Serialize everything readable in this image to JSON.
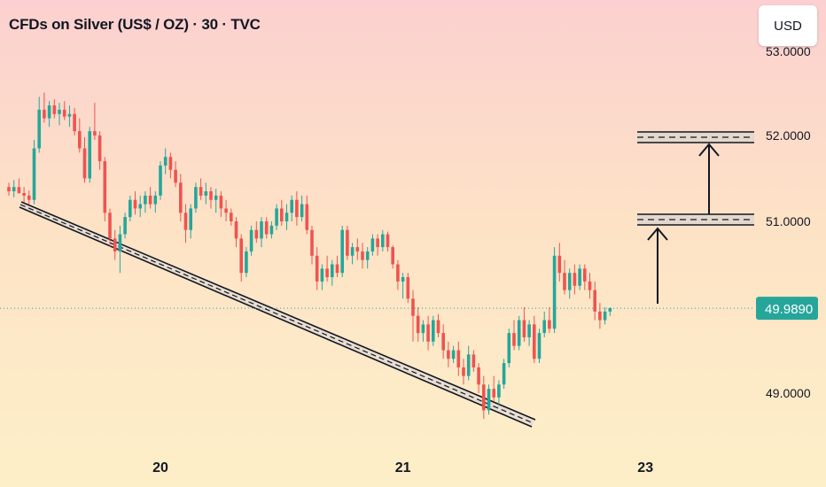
{
  "header": {
    "title": "CFDs on Silver (US$ / OZ) · 30 · TVC",
    "currency_label": "USD"
  },
  "colors": {
    "up": "#26a69a",
    "down": "#ef5350",
    "current_price": "#26a69a",
    "drawing": "#131722"
  },
  "chart_data": {
    "type": "candlestick",
    "y_axis": {
      "ticks": [
        {
          "value": 52.0,
          "label": "52.0000"
        },
        {
          "value": 51.0,
          "label": "51.0000"
        },
        {
          "value": 49.0,
          "label": "49.0000"
        }
      ],
      "range": [
        48.2,
        53.0
      ]
    },
    "x_axis": {
      "ticks": [
        {
          "index": 30,
          "label": "20"
        },
        {
          "index": 78,
          "label": "21"
        },
        {
          "index": 126,
          "label": "23"
        }
      ]
    },
    "current_price": {
      "value": 49.989,
      "label": "49.9890"
    },
    "candles": [
      [
        51.4,
        51.45,
        51.3,
        51.35
      ],
      [
        51.35,
        51.48,
        51.28,
        51.4
      ],
      [
        51.4,
        51.5,
        51.32,
        51.33
      ],
      [
        51.33,
        51.4,
        51.22,
        51.3
      ],
      [
        51.3,
        51.36,
        51.2,
        51.25
      ],
      [
        51.25,
        51.95,
        51.2,
        51.85
      ],
      [
        51.85,
        52.45,
        51.8,
        52.3
      ],
      [
        52.3,
        52.5,
        52.15,
        52.2
      ],
      [
        52.2,
        52.4,
        52.1,
        52.35
      ],
      [
        52.35,
        52.42,
        52.2,
        52.25
      ],
      [
        52.25,
        52.38,
        52.12,
        52.3
      ],
      [
        52.3,
        52.4,
        52.18,
        52.22
      ],
      [
        52.22,
        52.35,
        52.1,
        52.25
      ],
      [
        52.25,
        52.32,
        52.0,
        52.05
      ],
      [
        52.05,
        52.2,
        51.8,
        51.85
      ],
      [
        51.85,
        51.98,
        51.45,
        51.5
      ],
      [
        51.5,
        52.1,
        51.45,
        52.05
      ],
      [
        52.05,
        52.38,
        51.95,
        52.0
      ],
      [
        52.0,
        52.05,
        51.6,
        51.7
      ],
      [
        51.7,
        51.75,
        51.0,
        51.1
      ],
      [
        51.1,
        51.15,
        50.7,
        50.8
      ],
      [
        50.8,
        50.9,
        50.55,
        50.65
      ],
      [
        50.65,
        50.95,
        50.4,
        50.85
      ],
      [
        50.85,
        51.1,
        50.8,
        51.05
      ],
      [
        51.05,
        51.3,
        51.0,
        51.25
      ],
      [
        51.25,
        51.35,
        51.08,
        51.15
      ],
      [
        51.15,
        51.3,
        51.05,
        51.2
      ],
      [
        51.2,
        51.35,
        51.1,
        51.3
      ],
      [
        51.3,
        51.4,
        51.15,
        51.2
      ],
      [
        51.2,
        51.35,
        51.1,
        51.3
      ],
      [
        51.3,
        51.7,
        51.25,
        51.65
      ],
      [
        51.65,
        51.85,
        51.55,
        51.75
      ],
      [
        51.75,
        51.8,
        51.5,
        51.6
      ],
      [
        51.6,
        51.7,
        51.4,
        51.45
      ],
      [
        51.45,
        51.55,
        51.0,
        51.1
      ],
      [
        51.1,
        51.2,
        50.75,
        50.9
      ],
      [
        50.9,
        51.2,
        50.8,
        51.15
      ],
      [
        51.15,
        51.45,
        51.1,
        51.4
      ],
      [
        51.4,
        51.5,
        51.25,
        51.3
      ],
      [
        51.3,
        51.45,
        51.2,
        51.35
      ],
      [
        51.35,
        51.4,
        51.15,
        51.25
      ],
      [
        51.25,
        51.38,
        51.1,
        51.3
      ],
      [
        51.3,
        51.35,
        51.05,
        51.15
      ],
      [
        51.15,
        51.25,
        51.0,
        51.1
      ],
      [
        51.1,
        51.15,
        50.95,
        51.0
      ],
      [
        51.0,
        51.05,
        50.7,
        50.8
      ],
      [
        50.8,
        50.85,
        50.3,
        50.4
      ],
      [
        50.4,
        50.7,
        50.35,
        50.65
      ],
      [
        50.65,
        50.95,
        50.6,
        50.9
      ],
      [
        50.9,
        51.0,
        50.75,
        50.8
      ],
      [
        50.8,
        51.05,
        50.7,
        51.0
      ],
      [
        51.0,
        51.05,
        50.8,
        50.85
      ],
      [
        50.85,
        51.0,
        50.8,
        50.95
      ],
      [
        50.95,
        51.2,
        50.9,
        51.15
      ],
      [
        51.15,
        51.25,
        50.95,
        51.0
      ],
      [
        51.0,
        51.2,
        50.9,
        51.1
      ],
      [
        51.1,
        51.3,
        51.0,
        51.25
      ],
      [
        51.25,
        51.35,
        50.95,
        51.05
      ],
      [
        51.05,
        51.3,
        51.0,
        51.2
      ],
      [
        51.2,
        51.3,
        50.85,
        50.9
      ],
      [
        50.9,
        50.95,
        50.5,
        50.6
      ],
      [
        50.6,
        50.7,
        50.2,
        50.3
      ],
      [
        50.3,
        50.5,
        50.2,
        50.45
      ],
      [
        50.45,
        50.6,
        50.3,
        50.35
      ],
      [
        50.35,
        50.55,
        50.25,
        50.5
      ],
      [
        50.5,
        50.6,
        50.35,
        50.4
      ],
      [
        50.4,
        50.95,
        50.35,
        50.9
      ],
      [
        50.9,
        50.95,
        50.55,
        50.6
      ],
      [
        50.6,
        50.75,
        50.5,
        50.7
      ],
      [
        50.7,
        50.8,
        50.55,
        50.65
      ],
      [
        50.65,
        50.75,
        50.45,
        50.55
      ],
      [
        50.55,
        50.7,
        50.45,
        50.65
      ],
      [
        50.65,
        50.85,
        50.6,
        50.8
      ],
      [
        50.8,
        50.85,
        50.6,
        50.7
      ],
      [
        50.7,
        50.9,
        50.65,
        50.85
      ],
      [
        50.85,
        50.88,
        50.65,
        50.7
      ],
      [
        50.7,
        50.72,
        50.45,
        50.5
      ],
      [
        50.5,
        50.55,
        50.2,
        50.3
      ],
      [
        50.3,
        50.4,
        50.1,
        50.35
      ],
      [
        50.35,
        50.4,
        50.05,
        50.1
      ],
      [
        50.1,
        50.2,
        49.6,
        49.9
      ],
      [
        49.9,
        50.0,
        49.6,
        49.7
      ],
      [
        49.7,
        49.85,
        49.6,
        49.8
      ],
      [
        49.8,
        49.9,
        49.5,
        49.6
      ],
      [
        49.6,
        49.9,
        49.55,
        49.85
      ],
      [
        49.85,
        49.92,
        49.65,
        49.7
      ],
      [
        49.7,
        49.8,
        49.4,
        49.5
      ],
      [
        49.5,
        49.6,
        49.3,
        49.4
      ],
      [
        49.4,
        49.55,
        49.35,
        49.5
      ],
      [
        49.5,
        49.6,
        49.2,
        49.3
      ],
      [
        49.3,
        49.4,
        49.1,
        49.2
      ],
      [
        49.2,
        49.55,
        49.15,
        49.45
      ],
      [
        49.45,
        49.5,
        49.25,
        49.3
      ],
      [
        49.3,
        49.35,
        49.0,
        49.1
      ],
      [
        49.1,
        49.2,
        48.7,
        48.8
      ],
      [
        48.8,
        49.1,
        48.75,
        49.05
      ],
      [
        49.05,
        49.2,
        48.9,
        48.95
      ],
      [
        48.95,
        49.15,
        48.85,
        49.1
      ],
      [
        49.1,
        49.4,
        49.05,
        49.35
      ],
      [
        49.35,
        49.75,
        49.3,
        49.7
      ],
      [
        49.7,
        49.85,
        49.5,
        49.55
      ],
      [
        49.55,
        49.9,
        49.5,
        49.85
      ],
      [
        49.85,
        50.0,
        49.6,
        49.65
      ],
      [
        49.65,
        49.85,
        49.55,
        49.8
      ],
      [
        49.8,
        49.9,
        49.35,
        49.4
      ],
      [
        49.4,
        49.75,
        49.35,
        49.7
      ],
      [
        49.7,
        49.95,
        49.65,
        49.85
      ],
      [
        49.85,
        50.0,
        49.7,
        49.75
      ],
      [
        49.75,
        50.7,
        49.7,
        50.6
      ],
      [
        50.6,
        50.75,
        50.3,
        50.4
      ],
      [
        50.4,
        50.55,
        50.15,
        50.2
      ],
      [
        50.2,
        50.45,
        50.1,
        50.4
      ],
      [
        50.4,
        50.5,
        50.15,
        50.25
      ],
      [
        50.25,
        50.5,
        50.2,
        50.45
      ],
      [
        50.45,
        50.5,
        50.2,
        50.3
      ],
      [
        50.3,
        50.4,
        50.1,
        50.2
      ],
      [
        50.2,
        50.3,
        49.85,
        49.95
      ],
      [
        49.95,
        50.05,
        49.75,
        49.85
      ],
      [
        49.85,
        50.0,
        49.8,
        49.95
      ],
      [
        49.95,
        50.0,
        49.9,
        49.99
      ]
    ]
  }
}
